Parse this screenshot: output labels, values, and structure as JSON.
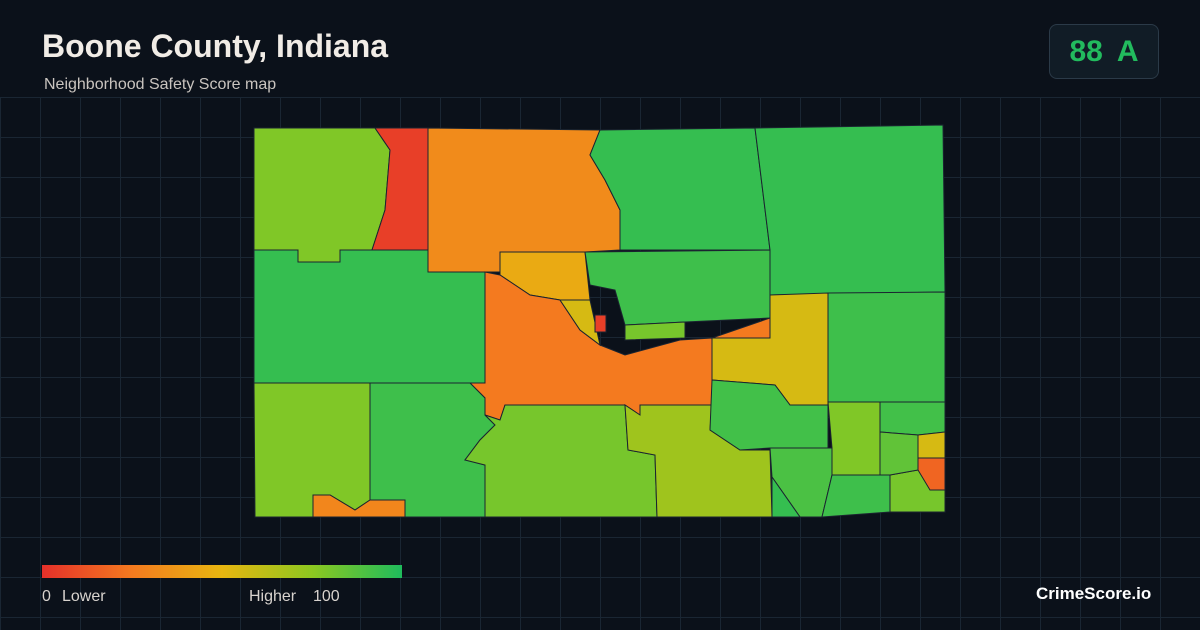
{
  "header": {
    "title": "Boone County, Indiana",
    "subtitle": "Neighborhood Safety Score map"
  },
  "badge": {
    "score": 88,
    "grade": "A"
  },
  "legend": {
    "min": 0,
    "min_label": "Lower",
    "max_label": "Higher",
    "max": 100,
    "colors": [
      "#e5302a",
      "#f47a1f",
      "#e8b610",
      "#8dc820",
      "#1fbc5c"
    ]
  },
  "scores": [
    78,
    5,
    32,
    95,
    95,
    95,
    45,
    93,
    25,
    55,
    93,
    78,
    93,
    30,
    80,
    70,
    92,
    78,
    92,
    90,
    95,
    93,
    80,
    55,
    18,
    55,
    5,
    80,
    85
  ],
  "brand": "CrimeScore.io"
}
